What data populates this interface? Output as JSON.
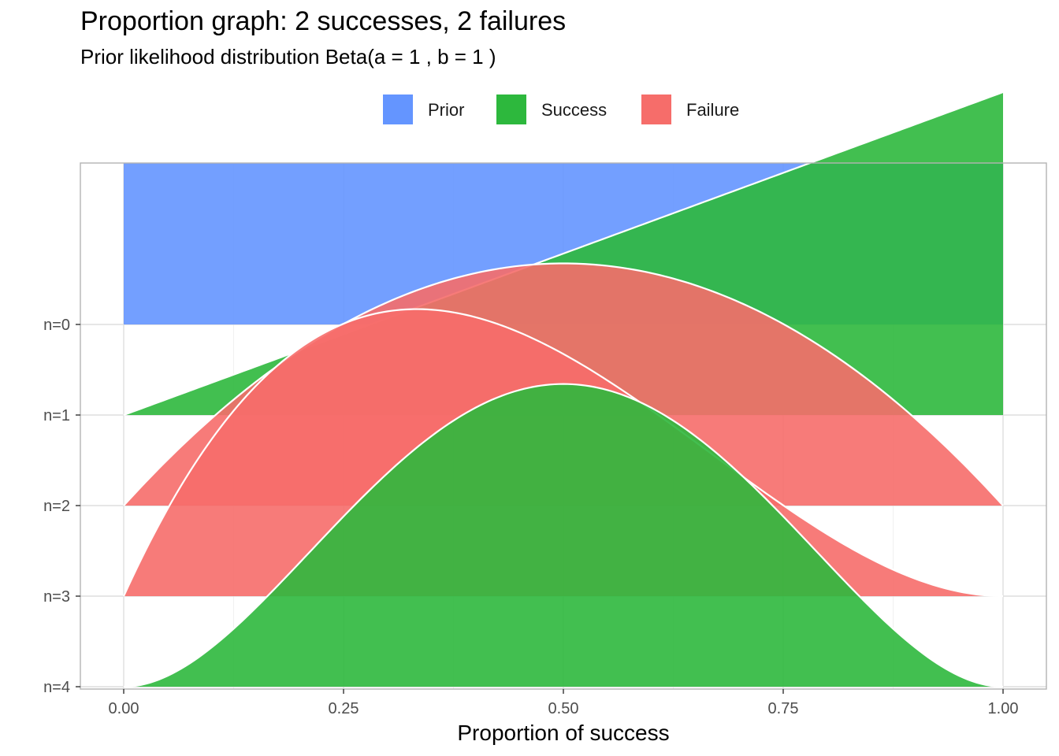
{
  "chart_data": {
    "type": "area",
    "title": "Proportion graph: 2 successes, 2 failures",
    "subtitle": "Prior likelihood distribution Beta(a = 1 , b = 1 )",
    "xlabel": "Proportion of success",
    "ylabel": "",
    "xlim": [
      0,
      1
    ],
    "x_ticks": [
      0,
      0.25,
      0.5,
      0.75,
      1
    ],
    "x_tick_labels": [
      "0.00",
      "0.25",
      "0.50",
      "0.75",
      "1.00"
    ],
    "y_categories": [
      "n=0",
      "n=1",
      "n=2",
      "n=3",
      "n=4"
    ],
    "legend": {
      "position": "top",
      "entries": [
        {
          "label": "Prior",
          "color": "#6495FF"
        },
        {
          "label": "Success",
          "color": "#2DB83D"
        },
        {
          "label": "Failure",
          "color": "#F66D6A"
        }
      ]
    },
    "series": [
      {
        "row": "n=0",
        "type": "Prior",
        "distribution": "Beta(1,1)",
        "a": 1,
        "b": 1
      },
      {
        "row": "n=1",
        "type": "Success",
        "distribution": "Beta(2,1)",
        "a": 2,
        "b": 1
      },
      {
        "row": "n=2",
        "type": "Failure",
        "distribution": "Beta(2,2)",
        "a": 2,
        "b": 2
      },
      {
        "row": "n=3",
        "type": "Failure",
        "distribution": "Beta(2,3)",
        "a": 2,
        "b": 3
      },
      {
        "row": "n=4",
        "type": "Success",
        "distribution": "Beta(3,3)",
        "a": 3,
        "b": 3
      }
    ],
    "grid": true
  }
}
